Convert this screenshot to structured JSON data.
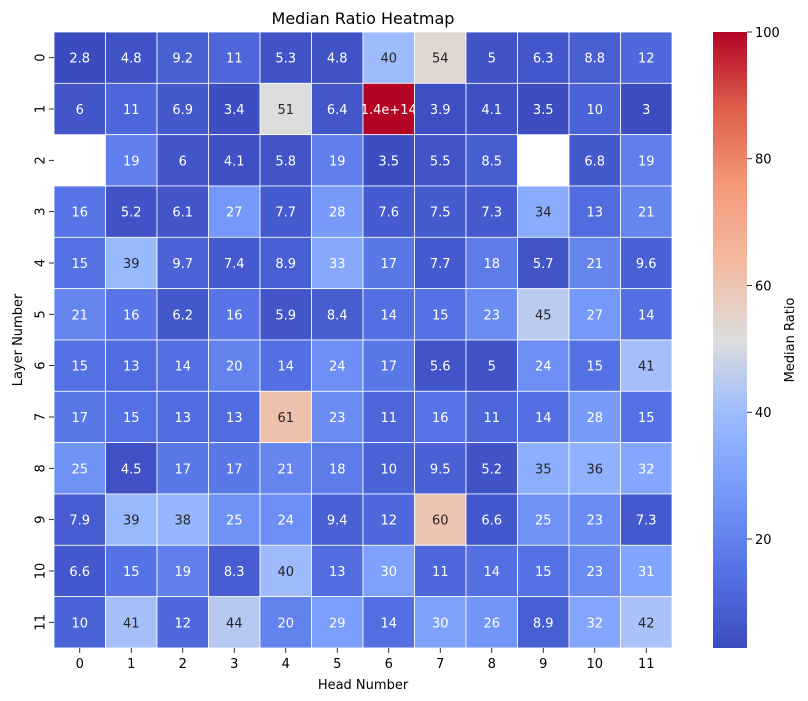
{
  "chart_data": {
    "type": "heatmap",
    "title": "Median Ratio Heatmap",
    "xlabel": "Head Number",
    "ylabel": "Layer Number",
    "x_categories": [
      "0",
      "1",
      "2",
      "3",
      "4",
      "5",
      "6",
      "7",
      "8",
      "9",
      "10",
      "11"
    ],
    "y_categories": [
      "0",
      "1",
      "2",
      "3",
      "4",
      "5",
      "6",
      "7",
      "8",
      "9",
      "10",
      "11"
    ],
    "values": [
      [
        2.8,
        4.8,
        9.2,
        11,
        5.3,
        4.8,
        40,
        54,
        5,
        6.3,
        8.8,
        12
      ],
      [
        6,
        11,
        6.9,
        3.4,
        51,
        6.4,
        140000000000000.0,
        3.9,
        4.1,
        3.5,
        10,
        3
      ],
      [
        null,
        19,
        6,
        4.1,
        5.8,
        19,
        3.5,
        5.5,
        8.5,
        null,
        6.8,
        19
      ],
      [
        16,
        5.2,
        6.1,
        27,
        7.7,
        28,
        7.6,
        7.5,
        7.3,
        34,
        13,
        21
      ],
      [
        15,
        39,
        9.7,
        7.4,
        8.9,
        33,
        17,
        7.7,
        18,
        5.7,
        21,
        9.6
      ],
      [
        21,
        16,
        6.2,
        16,
        5.9,
        8.4,
        14,
        15,
        23,
        45,
        27,
        14
      ],
      [
        15,
        13,
        14,
        20,
        14,
        24,
        17,
        5.6,
        5,
        24,
        15,
        41
      ],
      [
        17,
        15,
        13,
        13,
        61,
        23,
        11,
        16,
        11,
        14,
        28,
        15
      ],
      [
        25,
        4.5,
        17,
        17,
        21,
        18,
        10,
        9.5,
        5.2,
        35,
        36,
        32
      ],
      [
        7.9,
        39,
        38,
        25,
        24,
        9.4,
        12,
        60,
        6.6,
        25,
        23,
        7.3
      ],
      [
        6.6,
        15,
        19,
        8.3,
        40,
        13,
        30,
        11,
        14,
        15,
        23,
        31
      ],
      [
        10,
        41,
        12,
        44,
        20,
        29,
        14,
        30,
        26,
        8.9,
        32,
        42
      ]
    ],
    "labels": [
      [
        "2.8",
        "4.8",
        "9.2",
        "11",
        "5.3",
        "4.8",
        "40",
        "54",
        "5",
        "6.3",
        "8.8",
        "12"
      ],
      [
        "6",
        "11",
        "6.9",
        "3.4",
        "51",
        "6.4",
        "1.4e+14",
        "3.9",
        "4.1",
        "3.5",
        "10",
        "3"
      ],
      [
        "",
        "19",
        "6",
        "4.1",
        "5.8",
        "19",
        "3.5",
        "5.5",
        "8.5",
        "",
        "6.8",
        "19"
      ],
      [
        "16",
        "5.2",
        "6.1",
        "27",
        "7.7",
        "28",
        "7.6",
        "7.5",
        "7.3",
        "34",
        "13",
        "21"
      ],
      [
        "15",
        "39",
        "9.7",
        "7.4",
        "8.9",
        "33",
        "17",
        "7.7",
        "18",
        "5.7",
        "21",
        "9.6"
      ],
      [
        "21",
        "16",
        "6.2",
        "16",
        "5.9",
        "8.4",
        "14",
        "15",
        "23",
        "45",
        "27",
        "14"
      ],
      [
        "15",
        "13",
        "14",
        "20",
        "14",
        "24",
        "17",
        "5.6",
        "5",
        "24",
        "15",
        "41"
      ],
      [
        "17",
        "15",
        "13",
        "13",
        "61",
        "23",
        "11",
        "16",
        "11",
        "14",
        "28",
        "15"
      ],
      [
        "25",
        "4.5",
        "17",
        "17",
        "21",
        "18",
        "10",
        "9.5",
        "5.2",
        "35",
        "36",
        "32"
      ],
      [
        "7.9",
        "39",
        "38",
        "25",
        "24",
        "9.4",
        "12",
        "60",
        "6.6",
        "25",
        "23",
        "7.3"
      ],
      [
        "6.6",
        "15",
        "19",
        "8.3",
        "40",
        "13",
        "30",
        "11",
        "14",
        "15",
        "23",
        "31"
      ],
      [
        "10",
        "41",
        "12",
        "44",
        "20",
        "29",
        "14",
        "30",
        "26",
        "8.9",
        "32",
        "42"
      ]
    ],
    "color_range": [
      2.8,
      100
    ],
    "colormap": "coolwarm",
    "colorbar": {
      "label": "Median Ratio",
      "ticks": [
        20,
        40,
        60,
        80,
        100
      ],
      "tick_labels": [
        "20",
        "40",
        "60",
        "80",
        "100"
      ]
    },
    "grid_line_color": "#ffffff"
  }
}
